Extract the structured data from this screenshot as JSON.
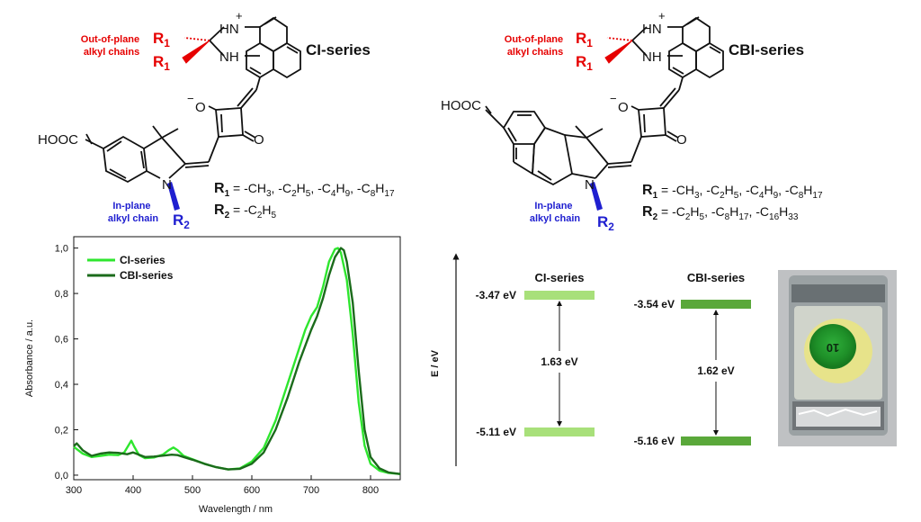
{
  "ci_structure": {
    "title": "CI-series",
    "out_of_plane_label": [
      "Out-of-plane",
      "alkyl chains"
    ],
    "in_plane_label": [
      "In-plane",
      "alkyl chain"
    ],
    "r1_line": "R1 = -CH3, -C2H5, -C4H9, -C8H17",
    "r2_line": "R2 = -C2H5",
    "anchor_group": "HOOC",
    "atoms": {
      "hn_plus": "HN",
      "nh": "NH",
      "plus": "+",
      "n": "N",
      "o_minus": "O",
      "minus": "−",
      "o": "O",
      "r1": "R",
      "r2": "R",
      "sub1": "1",
      "sub2": "2"
    }
  },
  "cbi_structure": {
    "title": "CBI-series",
    "out_of_plane_label": [
      "Out-of-plane",
      "alkyl chains"
    ],
    "in_plane_label": [
      "In-plane",
      "alkyl chain"
    ],
    "r1_line": "R1 = -CH3, -C2H5, -C4H9, -C8H17",
    "r2_line": "R2 = -C2H5, -C8H17, -C16H33",
    "anchor_group": "HOOC",
    "atoms": {
      "hn_plus": "HN",
      "nh": "NH",
      "plus": "+",
      "n": "N",
      "o_minus": "O",
      "minus": "−",
      "o": "O",
      "r1": "R",
      "r2": "R",
      "sub1": "1",
      "sub2": "2"
    }
  },
  "chart_data": {
    "type": "line",
    "title": "",
    "xlabel": "Wavelength / nm",
    "ylabel": "Absorbance / a.u.",
    "xlim": [
      300,
      850
    ],
    "ylim": [
      -0.02,
      1.05
    ],
    "xticks": [
      300,
      400,
      500,
      600,
      700,
      800
    ],
    "yticks": [
      "0,0",
      "0,2",
      "0,4",
      "0,6",
      "0,8",
      "1,0"
    ],
    "ytick_values": [
      0,
      0.2,
      0.4,
      0.6,
      0.8,
      1.0
    ],
    "legend": "top-left",
    "series": [
      {
        "name": "CI-series",
        "color": "#2ee62e",
        "x": [
          300,
          315,
          330,
          345,
          360,
          375,
          385,
          392,
          397,
          402,
          410,
          420,
          435,
          450,
          460,
          468,
          475,
          485,
          500,
          520,
          540,
          560,
          580,
          600,
          620,
          640,
          660,
          680,
          690,
          700,
          710,
          720,
          730,
          740,
          745,
          750,
          760,
          770,
          780,
          790,
          800,
          815,
          830,
          850
        ],
        "y": [
          0.125,
          0.095,
          0.08,
          0.085,
          0.09,
          0.088,
          0.1,
          0.13,
          0.152,
          0.125,
          0.088,
          0.075,
          0.078,
          0.09,
          0.11,
          0.122,
          0.11,
          0.085,
          0.07,
          0.05,
          0.035,
          0.025,
          0.03,
          0.06,
          0.12,
          0.24,
          0.4,
          0.56,
          0.64,
          0.7,
          0.74,
          0.83,
          0.94,
          0.995,
          1.0,
          0.98,
          0.86,
          0.62,
          0.32,
          0.13,
          0.05,
          0.02,
          0.01,
          0.005
        ]
      },
      {
        "name": "CBI-series",
        "color": "#1b6b1b",
        "x": [
          300,
          305,
          315,
          330,
          345,
          360,
          375,
          390,
          400,
          410,
          420,
          435,
          450,
          465,
          475,
          485,
          500,
          520,
          540,
          560,
          580,
          600,
          620,
          640,
          660,
          680,
          700,
          710,
          720,
          730,
          740,
          750,
          755,
          760,
          770,
          780,
          790,
          800,
          815,
          830,
          850
        ],
        "y": [
          0.128,
          0.14,
          0.11,
          0.085,
          0.095,
          0.1,
          0.098,
          0.092,
          0.1,
          0.09,
          0.08,
          0.082,
          0.086,
          0.09,
          0.088,
          0.08,
          0.068,
          0.05,
          0.035,
          0.025,
          0.028,
          0.05,
          0.1,
          0.2,
          0.34,
          0.5,
          0.64,
          0.7,
          0.78,
          0.88,
          0.96,
          1.0,
          0.99,
          0.94,
          0.76,
          0.46,
          0.2,
          0.08,
          0.03,
          0.012,
          0.005
        ]
      }
    ]
  },
  "energy_diagram": {
    "axis_label": "E / eV",
    "ci": {
      "title": "CI-series",
      "lumo": "-3.47 eV",
      "homo": "-5.11 eV",
      "gap": "1.63 eV",
      "color": "#a8e07a"
    },
    "cbi": {
      "title": "CBI-series",
      "lumo": "-3.54 eV",
      "homo": "-5.16 eV",
      "gap": "1.62 eV",
      "color": "#5aa83a"
    }
  },
  "device_photo": {
    "stamp_text": "10"
  },
  "colors": {
    "out_of_plane": "#e60000",
    "in_plane": "#1f1fd0"
  }
}
